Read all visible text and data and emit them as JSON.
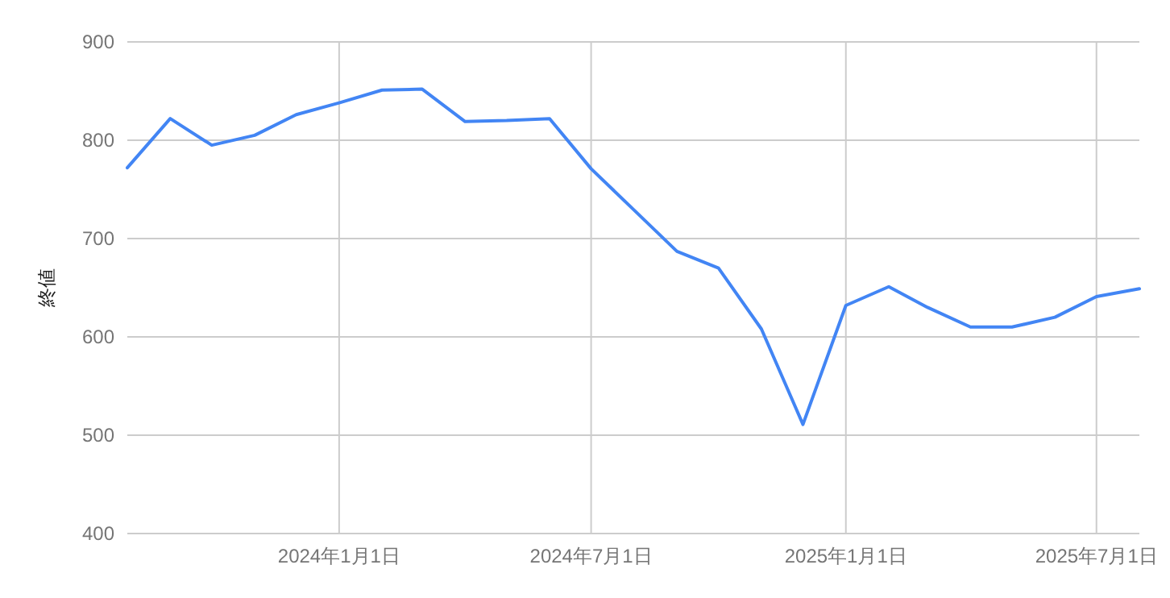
{
  "chart_data": {
    "type": "line",
    "ylabel": "終値",
    "x": [
      "2023-08-01",
      "2023-09-01",
      "2023-10-01",
      "2023-11-01",
      "2023-12-01",
      "2024-01-01",
      "2024-02-01",
      "2024-03-01",
      "2024-04-01",
      "2024-05-01",
      "2024-06-01",
      "2024-07-01",
      "2024-08-01",
      "2024-09-01",
      "2024-10-01",
      "2024-11-01",
      "2024-12-01",
      "2025-01-01",
      "2025-02-01",
      "2025-03-01",
      "2025-04-01",
      "2025-05-01",
      "2025-06-01",
      "2025-07-01",
      "2025-08-01"
    ],
    "series": [
      {
        "color": "#4285f4",
        "values": [
          772,
          822,
          795,
          805,
          826,
          838,
          851,
          852,
          819,
          820,
          822,
          771,
          729,
          687,
          670,
          608,
          511,
          632,
          651,
          630,
          610,
          610,
          620,
          641,
          649
        ]
      }
    ],
    "xlim": [
      "2023-08-01",
      "2025-08-01"
    ],
    "xticks": [
      {
        "value": "2024-01-01",
        "label": "2024年1月1日"
      },
      {
        "value": "2024-07-01",
        "label": "2024年7月1日"
      },
      {
        "value": "2025-01-01",
        "label": "2025年1月1日"
      },
      {
        "value": "2025-07-01",
        "label": "2025年7月1日"
      }
    ],
    "ylim": [
      400,
      900
    ],
    "yticks": [
      400,
      500,
      600,
      700,
      800,
      900
    ],
    "grid": true,
    "marker": "none",
    "line_style": "solid"
  }
}
